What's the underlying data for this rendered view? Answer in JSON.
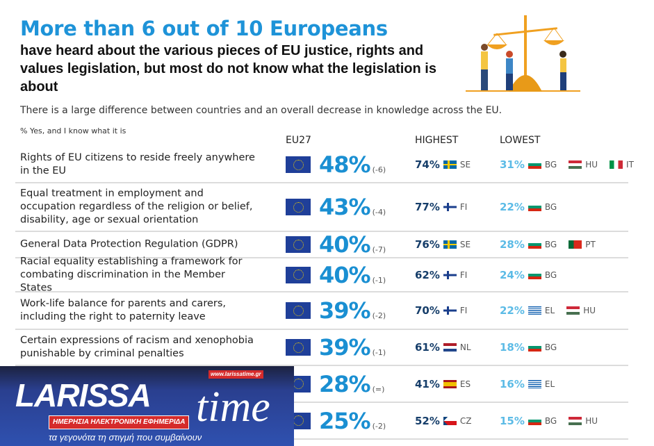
{
  "title": "More than 6 out of 10 Europeans",
  "subtitle": "have heard about the various pieces of EU justice, rights and values legislation, but most do not know what the legislation is about",
  "description": "There is a large difference between countries and an overall decrease in knowledge across the EU.",
  "note": "% Yes, and I know what it is",
  "headers": {
    "eu": "EU27",
    "highest": "HIGHEST",
    "lowest": "LOWEST"
  },
  "rows": [
    {
      "label": "Rights of EU citizens to reside freely anywhere in the EU",
      "eu": "48%",
      "change": "(-6)",
      "highest": [
        {
          "pct": "74%",
          "code": "SE"
        }
      ],
      "lowest_pct": "31%",
      "lowest": [
        "BG",
        "HU",
        "IT"
      ]
    },
    {
      "label": "Equal treatment in employment and occupation regardless of the religion or belief, disability, age or sexual orientation",
      "eu": "43%",
      "change": "(-4)",
      "highest": [
        {
          "pct": "77%",
          "code": "FI"
        }
      ],
      "lowest_pct": "22%",
      "lowest": [
        "BG"
      ]
    },
    {
      "label": "General Data Protection Regulation (GDPR)",
      "eu": "40%",
      "change": "(-7)",
      "highest": [
        {
          "pct": "76%",
          "code": "SE"
        }
      ],
      "lowest_pct": "28%",
      "lowest": [
        "BG",
        "PT"
      ]
    },
    {
      "label": "Racial equality establishing a framework for combating discrimination in the Member States",
      "eu": "40%",
      "change": "(-1)",
      "highest": [
        {
          "pct": "62%",
          "code": "FI"
        }
      ],
      "lowest_pct": "24%",
      "lowest": [
        "BG"
      ]
    },
    {
      "label": "Work-life balance for parents and carers, including the right to paternity leave",
      "eu": "39%",
      "change": "(-2)",
      "highest": [
        {
          "pct": "70%",
          "code": "FI"
        }
      ],
      "lowest_pct": "22%",
      "lowest": [
        "EL",
        "HU"
      ]
    },
    {
      "label": "Certain expressions of racism and xenophobia punishable by criminal penalties",
      "eu": "39%",
      "change": "(-1)",
      "highest": [
        {
          "pct": "61%",
          "code": "NL"
        }
      ],
      "lowest_pct": "18%",
      "lowest": [
        "BG"
      ]
    },
    {
      "eu": "28%",
      "change": "(=)",
      "highest": [
        {
          "pct": "41%",
          "code": "ES"
        }
      ],
      "lowest_pct": "16%",
      "lowest": [
        "EL"
      ]
    },
    {
      "eu": "25%",
      "change": "(-2)",
      "highest": [
        {
          "pct": "52%",
          "code": "CZ"
        }
      ],
      "lowest_pct": "15%",
      "lowest": [
        "BG",
        "HU"
      ]
    }
  ],
  "watermark": {
    "brand": "LARISSA",
    "brand2": "time",
    "url": "www.larissatime.gr",
    "strap": "ΗΜΕΡΗΣΙΑ ΗΛΕΚΤΡΟΝΙΚΗ ΕΦΗΜΕΡΙΔΑ",
    "tagline": "τα γεγονότα τη στιγμή που συμβαίνουν"
  }
}
